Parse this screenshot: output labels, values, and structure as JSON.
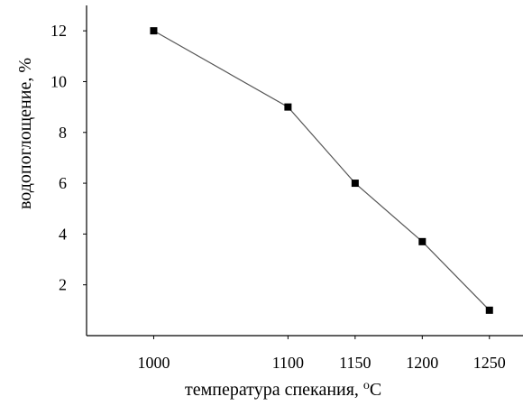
{
  "chart_data": {
    "type": "scatter",
    "title": "",
    "xlabel_main": "температура спекания, ",
    "xlabel_sup": "o",
    "xlabel_unit": "C",
    "ylabel": "водопоглощение, %",
    "xlim": [
      950,
      1275
    ],
    "ylim": [
      0,
      13
    ],
    "x_ticks": [
      1000,
      1100,
      1150,
      1200,
      1250
    ],
    "x_tick_labels": [
      "1000",
      "1100",
      "1150",
      "1200",
      "1250"
    ],
    "y_ticks": [
      2,
      4,
      6,
      8,
      10,
      12
    ],
    "y_tick_labels": [
      "2",
      "4",
      "6",
      "8",
      "10",
      "12"
    ],
    "grid": false,
    "series": [
      {
        "points": [
          {
            "x": 1000,
            "y": 12.0
          },
          {
            "x": 1100,
            "y": 9.0
          },
          {
            "x": 1150,
            "y": 6.0
          },
          {
            "x": 1200,
            "y": 3.7
          },
          {
            "x": 1250,
            "y": 1.0
          }
        ],
        "line": true
      }
    ]
  }
}
